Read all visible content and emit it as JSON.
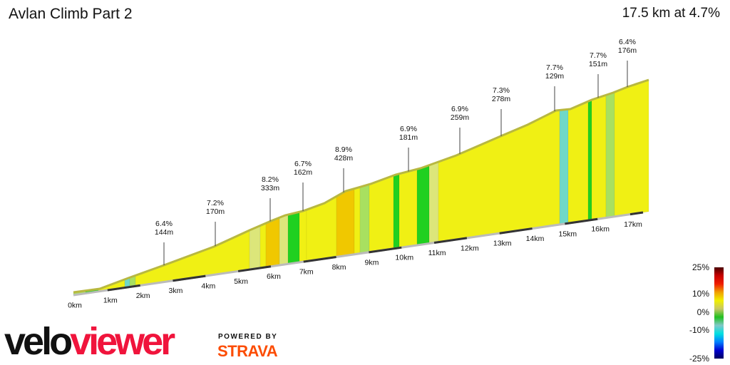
{
  "header": {
    "title": "Avlan Climb Part 2",
    "summary": "17.5 km at 4.7%"
  },
  "chart_data": {
    "type": "area",
    "title": "Avlan Climb Part 2",
    "distance_km": 17.5,
    "avg_gradient_pct": 4.7,
    "x_ticks": [
      "0km",
      "1km",
      "2km",
      "3km",
      "4km",
      "5km",
      "6km",
      "7km",
      "8km",
      "9km",
      "10km",
      "11km",
      "12km",
      "13km",
      "14km",
      "15km",
      "16km",
      "17km"
    ],
    "annotations": [
      {
        "gradient": "6.4%",
        "length": "144m"
      },
      {
        "gradient": "7.2%",
        "length": "170m"
      },
      {
        "gradient": "8.2%",
        "length": "333m"
      },
      {
        "gradient": "6.7%",
        "length": "162m"
      },
      {
        "gradient": "8.9%",
        "length": "428m"
      },
      {
        "gradient": "6.9%",
        "length": "181m"
      },
      {
        "gradient": "6.9%",
        "length": "259m"
      },
      {
        "gradient": "7.3%",
        "length": "278m"
      },
      {
        "gradient": "7.7%",
        "length": "129m"
      },
      {
        "gradient": "7.7%",
        "length": "151m"
      },
      {
        "gradient": "6.4%",
        "length": "176m"
      }
    ],
    "legend": {
      "labels": [
        "25%",
        "10%",
        "0%",
        "-10%",
        "-25%"
      ],
      "colors": [
        "#4a0000",
        "#c80000",
        "#f01e00",
        "#f0a000",
        "#f0f000",
        "#c8c864",
        "#20c020",
        "#80c8c8",
        "#00e0e0",
        "#0080ff",
        "#0000d0",
        "#000060"
      ]
    }
  },
  "branding": {
    "logo_a": "velo",
    "logo_b": "viewer",
    "powered": "POWERED BY",
    "strava": "STRAVA"
  }
}
